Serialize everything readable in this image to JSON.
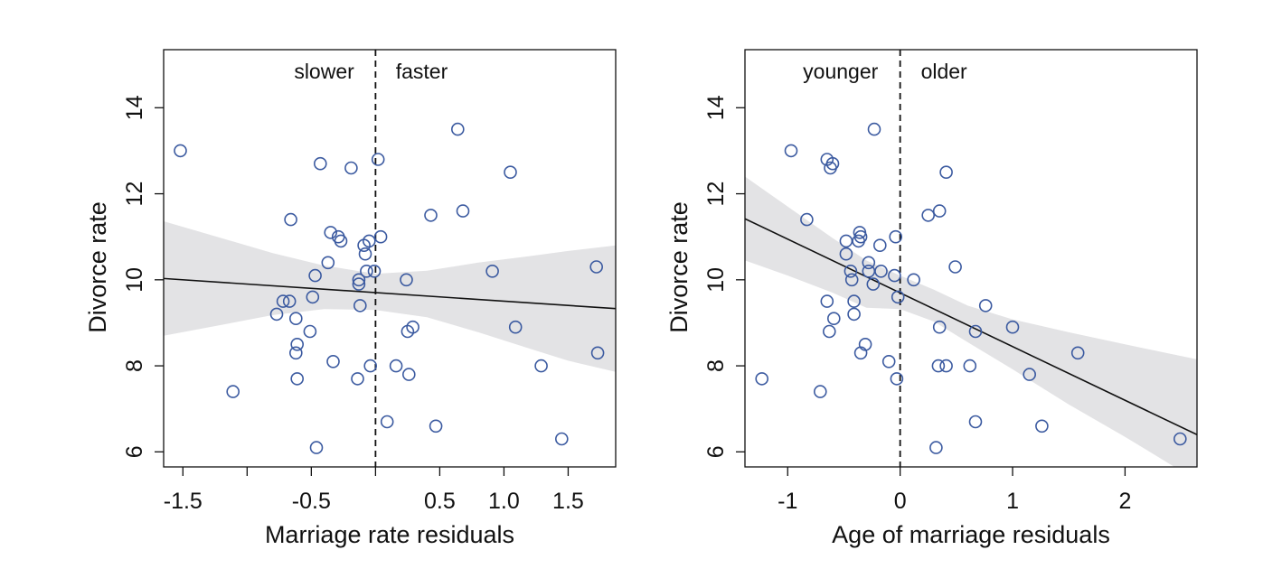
{
  "colors": {
    "point": "#3b5aa0",
    "band": "#e3e3e5",
    "line": "#111111",
    "axis": "#111111"
  },
  "chart_data": [
    {
      "type": "scatter",
      "xlabel": "Marriage rate residuals",
      "ylabel": "Divorce rate",
      "xlim": [
        -1.65,
        1.87
      ],
      "ylim": [
        5.65,
        15.35
      ],
      "xticks": [
        -1.5,
        -1.0,
        -0.5,
        0.0,
        0.5,
        1.0,
        1.5
      ],
      "xtick_labels": [
        "-1.5",
        "",
        "-0.5",
        "",
        "0.5",
        "1.0",
        "1.5"
      ],
      "yticks": [
        6,
        8,
        10,
        12,
        14
      ],
      "ytick_labels": [
        "6",
        "8",
        "10",
        "12",
        "14"
      ],
      "grid": false,
      "vline_x": 0.0,
      "annotations": [
        {
          "text": "slower",
          "x": -0.4,
          "y": 14.85
        },
        {
          "text": "faster",
          "x": 0.36,
          "y": 14.85
        }
      ],
      "points": [
        [
          -1.52,
          13.0
        ],
        [
          -1.11,
          7.4
        ],
        [
          -0.66,
          11.4
        ],
        [
          -0.43,
          12.7
        ],
        [
          -0.19,
          12.6
        ],
        [
          0.02,
          12.8
        ],
        [
          0.64,
          13.5
        ],
        [
          1.05,
          12.5
        ],
        [
          0.43,
          11.5
        ],
        [
          0.68,
          11.6
        ],
        [
          -0.35,
          11.1
        ],
        [
          -0.29,
          11.0
        ],
        [
          -0.27,
          10.9
        ],
        [
          -0.09,
          10.8
        ],
        [
          -0.05,
          10.9
        ],
        [
          0.04,
          11.0
        ],
        [
          -0.08,
          10.6
        ],
        [
          -0.37,
          10.4
        ],
        [
          -0.47,
          10.1
        ],
        [
          -0.07,
          10.2
        ],
        [
          -0.01,
          10.2
        ],
        [
          -0.13,
          10.0
        ],
        [
          -0.13,
          9.9
        ],
        [
          0.24,
          10.0
        ],
        [
          0.91,
          10.2
        ],
        [
          1.72,
          10.3
        ],
        [
          -0.72,
          9.5
        ],
        [
          -0.67,
          9.5
        ],
        [
          -0.49,
          9.6
        ],
        [
          -0.12,
          9.4
        ],
        [
          -0.77,
          9.2
        ],
        [
          -0.62,
          9.1
        ],
        [
          0.25,
          8.8
        ],
        [
          0.29,
          8.9
        ],
        [
          1.09,
          8.9
        ],
        [
          -0.51,
          8.8
        ],
        [
          -0.61,
          8.5
        ],
        [
          -0.62,
          8.3
        ],
        [
          -0.33,
          8.1
        ],
        [
          -0.04,
          8.0
        ],
        [
          0.16,
          8.0
        ],
        [
          1.29,
          8.0
        ],
        [
          1.73,
          8.3
        ],
        [
          -0.61,
          7.7
        ],
        [
          -0.14,
          7.7
        ],
        [
          0.26,
          7.8
        ],
        [
          0.09,
          6.7
        ],
        [
          0.47,
          6.6
        ],
        [
          -0.46,
          6.1
        ],
        [
          1.45,
          6.3
        ]
      ],
      "fit_line": {
        "x": [
          -1.65,
          1.87
        ],
        "y": [
          10.03,
          9.33
        ]
      },
      "band": {
        "x": [
          -1.65,
          -1.2,
          -0.8,
          -0.4,
          0.0,
          0.4,
          0.8,
          1.2,
          1.5,
          1.87
        ],
        "lower": [
          8.7,
          8.95,
          9.18,
          9.32,
          9.3,
          9.13,
          8.78,
          8.4,
          8.12,
          7.86
        ],
        "upper": [
          11.36,
          10.97,
          10.62,
          10.33,
          10.14,
          10.21,
          10.4,
          10.55,
          10.67,
          10.8
        ]
      }
    },
    {
      "type": "scatter",
      "xlabel": "Age of marriage residuals",
      "ylabel": "Divorce rate",
      "xlim": [
        -1.38,
        2.64
      ],
      "ylim": [
        5.65,
        15.35
      ],
      "xticks": [
        -1,
        0,
        1,
        2
      ],
      "xtick_labels": [
        "-1",
        "0",
        "1",
        "2"
      ],
      "yticks": [
        6,
        8,
        10,
        12,
        14
      ],
      "ytick_labels": [
        "6",
        "8",
        "10",
        "12",
        "14"
      ],
      "grid": false,
      "vline_x": 0.0,
      "annotations": [
        {
          "text": "younger",
          "x": -0.53,
          "y": 14.85
        },
        {
          "text": "older",
          "x": 0.39,
          "y": 14.85
        }
      ],
      "points": [
        [
          -0.97,
          13.0
        ],
        [
          -0.65,
          12.8
        ],
        [
          -0.6,
          12.7
        ],
        [
          -0.62,
          12.6
        ],
        [
          -0.23,
          13.5
        ],
        [
          0.41,
          12.5
        ],
        [
          -0.83,
          11.4
        ],
        [
          0.25,
          11.5
        ],
        [
          0.35,
          11.6
        ],
        [
          -0.36,
          11.1
        ],
        [
          -0.35,
          11.0
        ],
        [
          -0.37,
          10.9
        ],
        [
          -0.48,
          10.9
        ],
        [
          -0.04,
          11.0
        ],
        [
          -0.18,
          10.8
        ],
        [
          -0.48,
          10.6
        ],
        [
          -0.28,
          10.4
        ],
        [
          -0.44,
          10.2
        ],
        [
          -0.28,
          10.2
        ],
        [
          -0.17,
          10.2
        ],
        [
          -0.05,
          10.1
        ],
        [
          0.49,
          10.3
        ],
        [
          -0.43,
          10.0
        ],
        [
          -0.24,
          9.9
        ],
        [
          0.12,
          10.0
        ],
        [
          -0.65,
          9.5
        ],
        [
          -0.41,
          9.5
        ],
        [
          -0.02,
          9.6
        ],
        [
          -0.41,
          9.2
        ],
        [
          -0.59,
          9.1
        ],
        [
          0.76,
          9.4
        ],
        [
          0.35,
          8.9
        ],
        [
          1.0,
          8.9
        ],
        [
          -0.63,
          8.8
        ],
        [
          0.67,
          8.8
        ],
        [
          -0.31,
          8.5
        ],
        [
          -0.35,
          8.3
        ],
        [
          1.58,
          8.3
        ],
        [
          -0.1,
          8.1
        ],
        [
          0.34,
          8.0
        ],
        [
          0.41,
          8.0
        ],
        [
          0.62,
          8.0
        ],
        [
          -1.23,
          7.7
        ],
        [
          -0.03,
          7.7
        ],
        [
          1.15,
          7.8
        ],
        [
          -0.71,
          7.4
        ],
        [
          0.67,
          6.7
        ],
        [
          1.26,
          6.6
        ],
        [
          0.32,
          6.1
        ],
        [
          2.49,
          6.3
        ]
      ],
      "fit_line": {
        "x": [
          -1.38,
          2.64
        ],
        "y": [
          11.42,
          6.4
        ]
      },
      "band": {
        "x": [
          -1.38,
          -1.0,
          -0.6,
          -0.3,
          0.0,
          0.3,
          0.6,
          1.0,
          1.5,
          2.0,
          2.64
        ],
        "lower": [
          10.45,
          10.1,
          9.7,
          9.35,
          9.32,
          9.03,
          8.55,
          7.92,
          7.1,
          6.35,
          5.33
        ],
        "upper": [
          12.4,
          11.7,
          10.97,
          10.45,
          10.1,
          9.77,
          9.4,
          9.08,
          8.78,
          8.5,
          8.15
        ]
      }
    }
  ]
}
